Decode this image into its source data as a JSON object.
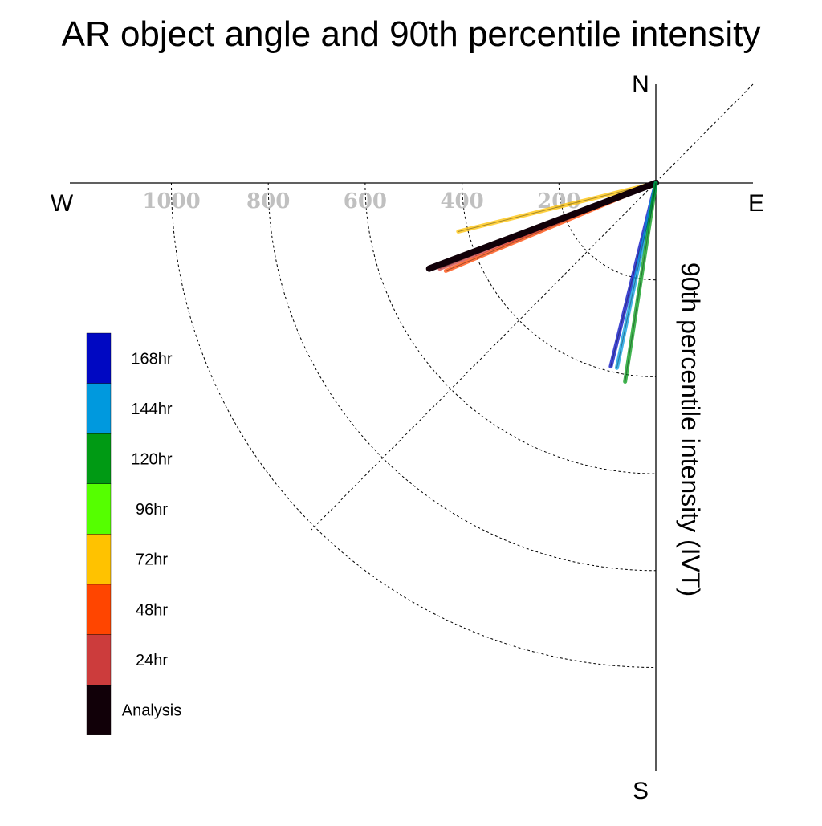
{
  "chart_data": {
    "type": "polar-line",
    "title": "AR object angle and 90th percentile intensity",
    "ylabel": "90th percentile intensity (IVT)",
    "compass": {
      "north": "N",
      "south": "S",
      "east": "E",
      "west": "W"
    },
    "radial_ticks": [
      200,
      400,
      600,
      800,
      1000
    ],
    "radial_range": [
      0,
      1000
    ],
    "series": [
      {
        "name": "Analysis",
        "color": "#110008",
        "angle_deg": 200.7,
        "intensity": 500
      },
      {
        "name": "24hr",
        "color": "#cc3c3c",
        "angle_deg": 201.6,
        "intensity": 480
      },
      {
        "name": "48hr",
        "color": "#ff4500",
        "angle_deg": 202.7,
        "intensity": 470
      },
      {
        "name": "72hr",
        "color": "#ffc200",
        "angle_deg": 193.8,
        "intensity": 420
      },
      {
        "name": "96hr",
        "color": "#55ff00",
        "angle_deg": null,
        "intensity": null
      },
      {
        "name": "120hr",
        "color": "#009a14",
        "angle_deg": 261.2,
        "intensity": 415
      },
      {
        "name": "144hr",
        "color": "#0099de",
        "angle_deg": 258.1,
        "intensity": 390
      },
      {
        "name": "168hr",
        "color": "#0008c2",
        "angle_deg": 256.2,
        "intensity": 390
      }
    ],
    "legend": [
      "168hr",
      "144hr",
      "120hr",
      "96hr",
      "72hr",
      "48hr",
      "24hr",
      "Analysis"
    ]
  }
}
